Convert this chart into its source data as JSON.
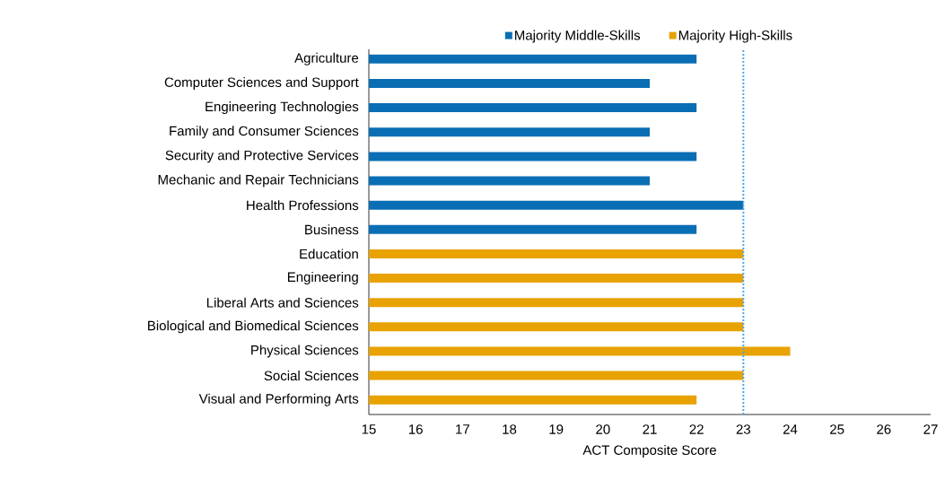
{
  "chart_data": {
    "type": "bar",
    "orientation": "horizontal",
    "xlabel": "ACT Composite Score",
    "categories": [
      "Agriculture",
      "Computer Sciences and Support",
      "Engineering Technologies",
      "Family and Consumer Sciences",
      "Security and Protective Services",
      "Mechanic and Repair Technicians",
      "Health Professions",
      "Business",
      "Education",
      "Engineering",
      "Liberal Arts and Sciences",
      "Biological and Biomedical Sciences",
      "Physical Sciences",
      "Social Sciences",
      "Visual and Performing Arts"
    ],
    "series": [
      {
        "name": "Majority Middle-Skills",
        "color": "#0a6eb4",
        "values": [
          22,
          21,
          22,
          21,
          22,
          21,
          23,
          22,
          null,
          null,
          null,
          null,
          null,
          null,
          null
        ]
      },
      {
        "name": "Majority High-Skills",
        "color": "#e8a202",
        "values": [
          null,
          null,
          null,
          null,
          null,
          null,
          null,
          null,
          23,
          23,
          23,
          23,
          24,
          23,
          22
        ]
      }
    ],
    "xlim": [
      15,
      27
    ],
    "xticks": [
      15,
      16,
      17,
      18,
      19,
      20,
      21,
      22,
      23,
      24,
      25,
      26,
      27
    ],
    "ref_lines": [
      {
        "axis": "x",
        "value": 23,
        "color": "#4da6ee",
        "line_style": "dotted"
      }
    ],
    "grid": false,
    "legend": "top"
  }
}
